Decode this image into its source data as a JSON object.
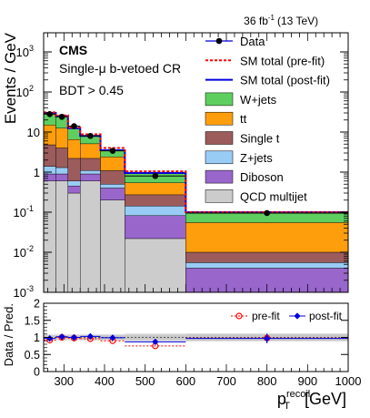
{
  "header": {
    "lumi": "36 fb",
    "lumi_sup": "-1",
    "energy": "(13 TeV)"
  },
  "labels": {
    "cms": "CMS",
    "region": "Single-μ b-vetoed CR",
    "cut": "BDT > 0.45"
  },
  "colors": {
    "wjets": "#5ecf5e",
    "ttbar": "#ff9e0d",
    "singlet": "#9c5c5c",
    "zjets": "#99ccf5",
    "diboson": "#9966cc",
    "qcd": "#cccccc",
    "prefit": "#ff0000",
    "postfit": "#0000dd",
    "data": "#000000"
  },
  "chart_data": [
    {
      "type": "area",
      "panel": "main",
      "ylabel": "Events / GeV",
      "yscale": "log",
      "ylim": [
        0.001,
        3000
      ],
      "xlim": [
        250,
        1000
      ],
      "yticks": [
        {
          "v": 0.001,
          "b": "10",
          "e": "-3"
        },
        {
          "v": 0.01,
          "b": "10",
          "e": "-2"
        },
        {
          "v": 0.1,
          "b": "10",
          "e": "-1"
        },
        {
          "v": 1,
          "b": "1",
          "e": ""
        },
        {
          "v": 10,
          "b": "10",
          "e": ""
        },
        {
          "v": 100,
          "b": "10",
          "e": "2"
        },
        {
          "v": 1000,
          "b": "10",
          "e": "3"
        }
      ],
      "bin_edges": [
        250,
        280,
        310,
        340,
        390,
        450,
        600,
        1000
      ],
      "stack_order_bottom_to_top": [
        "qcd",
        "diboson",
        "zjets",
        "singlet",
        "ttbar",
        "wjets"
      ],
      "series": [
        {
          "name": "QCD multijet",
          "key": "qcd",
          "values": [
            0.6,
            0.6,
            0.3,
            0.6,
            0.2,
            0.022,
            1e-05
          ]
        },
        {
          "name": "Diboson",
          "key": "diboson",
          "values": [
            0.3,
            0.3,
            0.15,
            0.3,
            0.2,
            0.06,
            0.004
          ]
        },
        {
          "name": "Z+jets",
          "key": "zjets",
          "values": [
            0.5,
            0.4,
            0.15,
            0.2,
            0.1,
            0.06,
            0.0015
          ]
        },
        {
          "name": "Single t",
          "key": "singlet",
          "values": [
            3.4,
            2.7,
            1.6,
            1.1,
            0.6,
            0.13,
            0.0045
          ]
        },
        {
          "name": "tt",
          "key": "ttbar",
          "values": [
            10.2,
            8.5,
            4.3,
            2.9,
            1.3,
            0.27,
            0.045
          ]
        },
        {
          "name": "W+jets",
          "key": "wjets",
          "values": [
            15.0,
            12.5,
            6.0,
            2.9,
            1.1,
            0.45,
            0.045
          ]
        }
      ],
      "prefit_total": [
        31,
        26,
        13,
        8.8,
        4.0,
        1.05,
        0.1
      ],
      "postfit_total": [
        30,
        25,
        12.5,
        8.0,
        3.5,
        0.95,
        0.1
      ],
      "data": {
        "name": "Data",
        "x": [
          265,
          295,
          325,
          365,
          420,
          525,
          800
        ],
        "y": [
          28,
          24,
          14,
          8,
          3.4,
          0.8,
          0.095
        ]
      },
      "legend": {
        "position": "top-right",
        "entries": [
          {
            "label": "Data",
            "kind": "marker",
            "key": "data"
          },
          {
            "label": "SM total (pre-fit)",
            "kind": "dashed",
            "key": "prefit"
          },
          {
            "label": "SM total (post-fit)",
            "kind": "line",
            "key": "postfit"
          },
          {
            "label": "W+jets",
            "kind": "box",
            "key": "wjets"
          },
          {
            "label": "tt",
            "kind": "box",
            "key": "ttbar"
          },
          {
            "label": "Single t",
            "kind": "box",
            "key": "singlet"
          },
          {
            "label": "Z+jets",
            "kind": "box",
            "key": "zjets"
          },
          {
            "label": "Diboson",
            "kind": "box",
            "key": "diboson"
          },
          {
            "label": "QCD multijet",
            "kind": "box",
            "key": "qcd"
          }
        ]
      }
    },
    {
      "type": "scatter",
      "panel": "ratio",
      "ylabel": "Data / Pred.",
      "xlabel": "p",
      "xlabel_sub": "T",
      "xlabel_sup": "recoil",
      "xlabel_unit": "[GeV]",
      "ylim": [
        0,
        2
      ],
      "xlim": [
        250,
        1000
      ],
      "yticks": [
        "0",
        "0.5",
        "1",
        "1.5",
        "2"
      ],
      "xticks": [
        "300",
        "400",
        "500",
        "600",
        "700",
        "800",
        "900",
        "1000"
      ],
      "bin_edges": [
        250,
        280,
        310,
        340,
        390,
        450,
        600,
        1000
      ],
      "prefit": {
        "name": "pre-fit",
        "x": [
          265,
          295,
          325,
          365,
          420,
          525,
          800
        ],
        "y": [
          0.92,
          1.0,
          0.98,
          0.96,
          0.9,
          0.75,
          0.98
        ]
      },
      "postfit": {
        "name": "post-fit",
        "x": [
          265,
          295,
          325,
          365,
          420,
          525,
          800
        ],
        "y": [
          0.97,
          1.02,
          1.0,
          1.03,
          0.99,
          0.87,
          0.97
        ]
      },
      "postfit_band": [
        0.06,
        0.06,
        0.06,
        0.06,
        0.07,
        0.08,
        0.1
      ],
      "prefit_band": [
        0.1,
        0.1,
        0.1,
        0.1,
        0.1,
        0.12,
        0.12
      ]
    }
  ]
}
